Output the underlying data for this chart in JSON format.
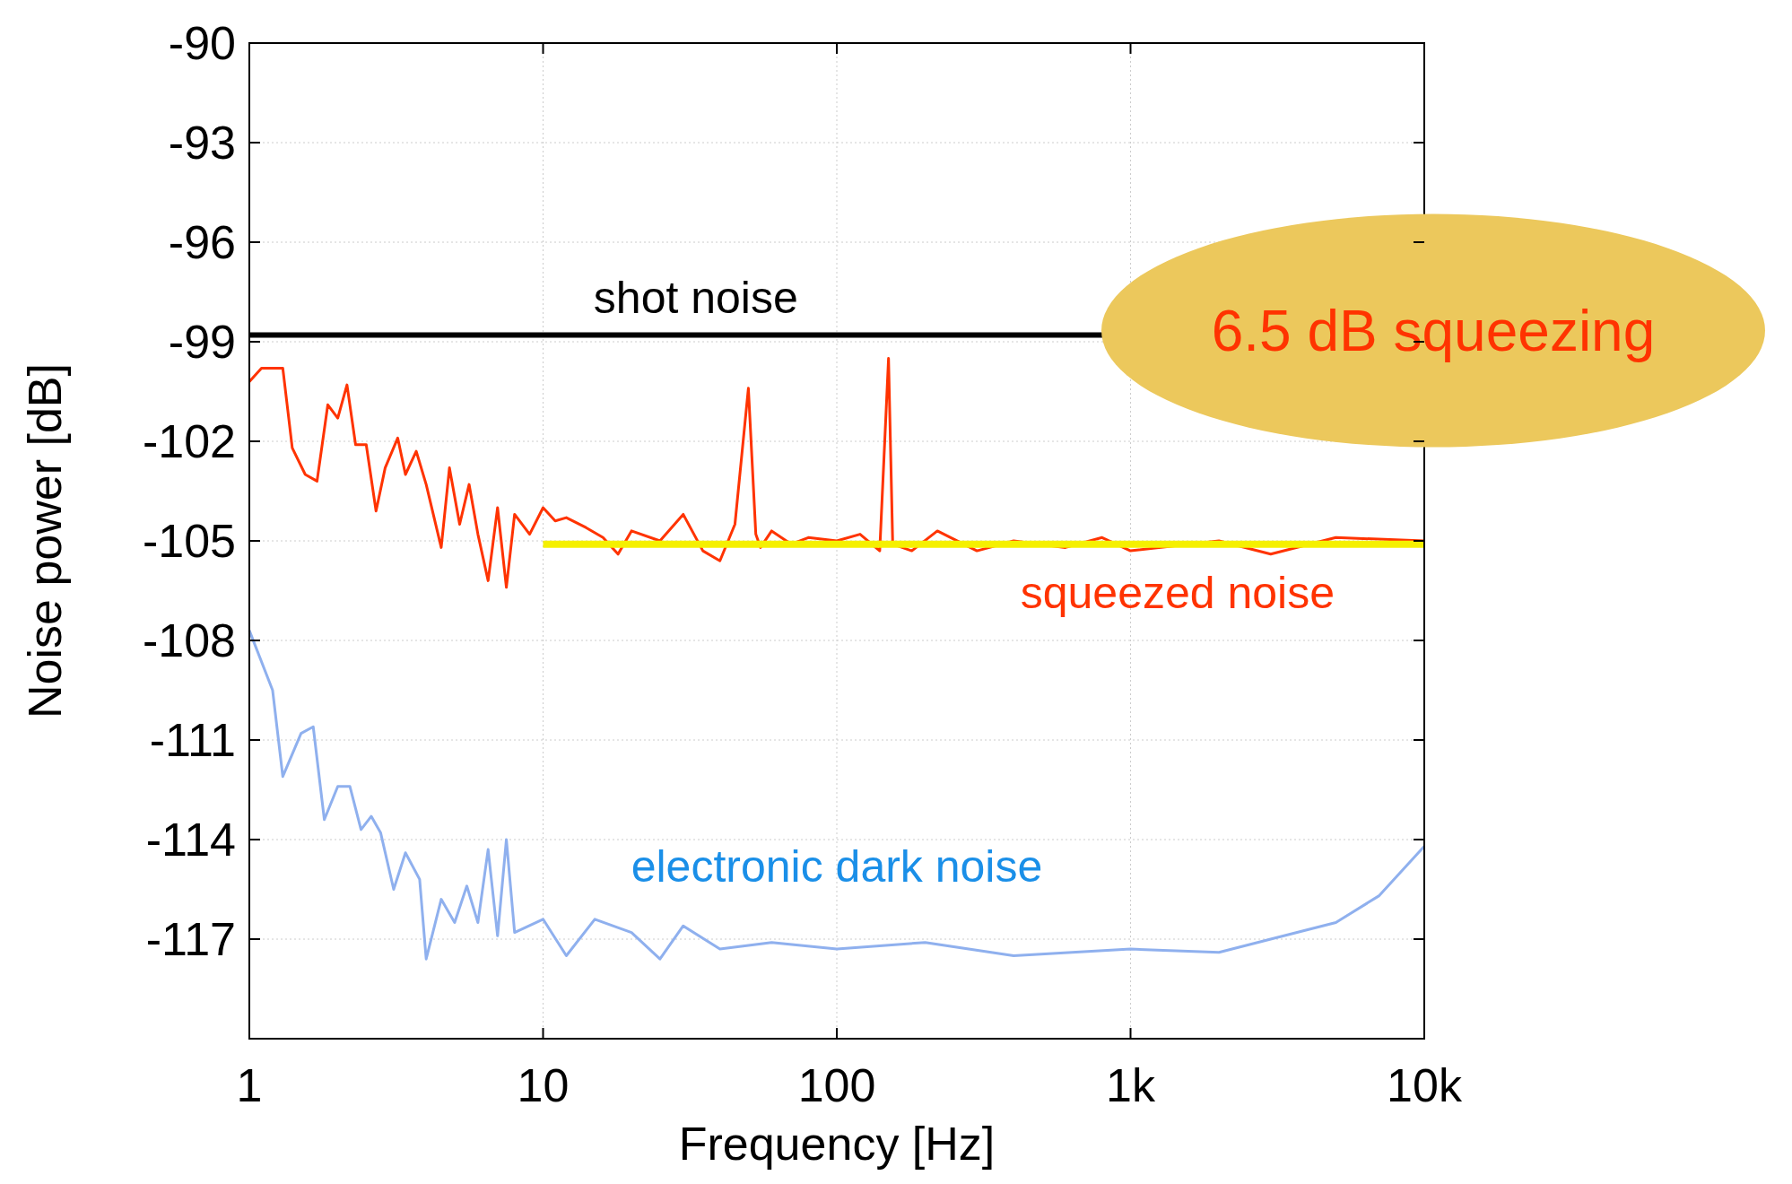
{
  "chart_data": {
    "type": "line",
    "xlabel": "Frequency [Hz]",
    "ylabel": "Noise power [dB]",
    "log": "x",
    "grid": true,
    "marker": "none",
    "line_style": "solid",
    "xlim": [
      1,
      10000
    ],
    "xticks": [
      {
        "value": 1,
        "label": "1"
      },
      {
        "value": 10,
        "label": "10"
      },
      {
        "value": 100,
        "label": "100"
      },
      {
        "value": 1000,
        "label": "1k"
      },
      {
        "value": 10000,
        "label": "10k"
      }
    ],
    "ylim": [
      -120,
      -90
    ],
    "yticks": [
      -90,
      -93,
      -96,
      -99,
      -102,
      -105,
      -108,
      -111,
      -114,
      -117,
      {
        "value": -120,
        "label": null
      }
    ],
    "series": [
      {
        "name": "squeezed noise",
        "color": "#ff3300",
        "x": [
          1,
          1.1,
          1.3,
          1.4,
          1.55,
          1.7,
          1.85,
          2,
          2.15,
          2.3,
          2.5,
          2.7,
          2.9,
          3.2,
          3.4,
          3.7,
          4,
          4.5,
          4.8,
          5.2,
          5.6,
          6,
          6.5,
          7,
          7.5,
          8,
          9,
          10,
          11,
          12,
          14,
          16,
          18,
          20,
          25,
          30,
          35,
          40,
          45,
          50,
          53,
          55,
          60,
          70,
          80,
          100,
          120,
          140,
          150,
          155,
          180,
          220,
          300,
          400,
          600,
          800,
          1000,
          2000,
          3000,
          5000,
          10000
        ],
        "values": [
          -100.2,
          -99.8,
          -99.8,
          -102.2,
          -103,
          -103.2,
          -100.9,
          -101.3,
          -100.3,
          -102.1,
          -102.1,
          -104.1,
          -102.8,
          -101.9,
          -103,
          -102.3,
          -103.3,
          -105.2,
          -102.8,
          -104.5,
          -103.3,
          -104.8,
          -106.2,
          -104,
          -106.4,
          -104.2,
          -104.8,
          -104,
          -104.4,
          -104.3,
          -104.6,
          -104.9,
          -105.4,
          -104.7,
          -105,
          -104.2,
          -105.3,
          -105.6,
          -104.5,
          -100.4,
          -104.8,
          -105.2,
          -104.7,
          -105.1,
          -104.9,
          -105,
          -104.8,
          -105.3,
          -99.5,
          -105.1,
          -105.3,
          -104.7,
          -105.3,
          -105,
          -105.2,
          -104.9,
          -105.3,
          -105,
          -105.4,
          -104.9,
          -105
        ]
      },
      {
        "name": "electronic dark noise",
        "color": "#8fb0ee",
        "x": [
          1,
          1.2,
          1.3,
          1.5,
          1.65,
          1.8,
          2,
          2.2,
          2.4,
          2.6,
          2.8,
          3.1,
          3.4,
          3.8,
          4,
          4.5,
          5,
          5.5,
          6,
          6.5,
          7,
          7.5,
          8,
          10,
          12,
          15,
          20,
          25,
          30,
          40,
          60,
          100,
          200,
          400,
          1000,
          2000,
          3000,
          5000,
          7000,
          10000
        ],
        "values": [
          -107.7,
          -109.5,
          -112.1,
          -110.8,
          -110.6,
          -113.4,
          -112.4,
          -112.4,
          -113.7,
          -113.3,
          -113.8,
          -115.5,
          -114.4,
          -115.2,
          -117.6,
          -115.8,
          -116.5,
          -115.4,
          -116.5,
          -114.3,
          -116.9,
          -114,
          -116.8,
          -116.4,
          -117.5,
          -116.4,
          -116.8,
          -117.6,
          -116.6,
          -117.3,
          -117.1,
          -117.3,
          -117.1,
          -117.5,
          -117.3,
          -117.4,
          -117,
          -116.5,
          -115.7,
          -114.2
        ]
      },
      {
        "color": "#f5f000",
        "x": [
          10,
          10000
        ],
        "values": [
          -105.1,
          -105.1
        ]
      }
    ],
    "ref_lines": [
      {
        "axis": "y",
        "value": -98.8,
        "label": "shot noise",
        "color": "#000000"
      }
    ],
    "annotations": [
      "6.5 dB squeezing"
    ]
  }
}
